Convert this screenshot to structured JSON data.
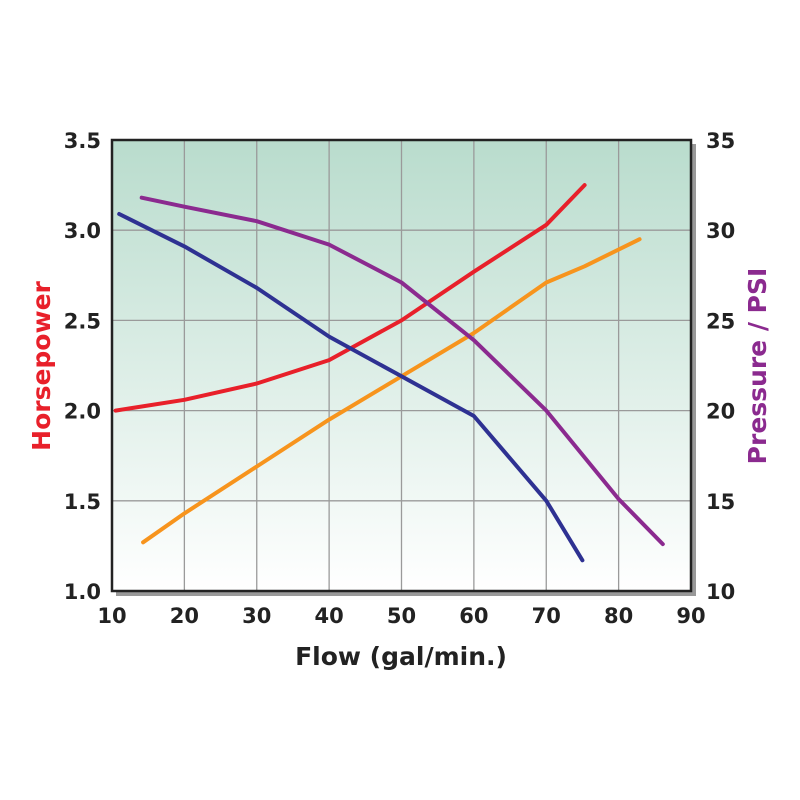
{
  "chart_data": {
    "type": "line",
    "xlabel": "Flow (gal/min.)",
    "ylabel": "Horsepower",
    "ylabel_right": "Pressure / PSI",
    "xlim": [
      10,
      90
    ],
    "ylim": [
      1.0,
      3.5
    ],
    "ylim_right": [
      10,
      35
    ],
    "x_ticks": [
      "10",
      "20",
      "30",
      "40",
      "50",
      "60",
      "70",
      "80",
      "90"
    ],
    "y_ticks": [
      "1.0",
      "1.5",
      "2.0",
      "2.5",
      "3.0",
      "3.5"
    ],
    "y_ticks_right": [
      "10",
      "15",
      "20",
      "25",
      "30",
      "35"
    ],
    "grid": true,
    "colors": {
      "ylabel": "#e8202a",
      "ylabel_right": "#8b2a8f",
      "bg_top": "#b9dccd",
      "bg_bottom": "#ffffff"
    },
    "series": [
      {
        "color": "#e8202a",
        "axis": "left",
        "x": [
          10.5,
          20,
          30,
          40,
          50,
          60,
          70,
          75.3
        ],
        "y": [
          2.0,
          2.06,
          2.15,
          2.28,
          2.5,
          2.77,
          3.03,
          3.25
        ]
      },
      {
        "color": "#f7941d",
        "axis": "left",
        "x": [
          14.3,
          20,
          30,
          40,
          50,
          60,
          70,
          75.3,
          82.9
        ],
        "y": [
          1.27,
          1.43,
          1.69,
          1.95,
          2.19,
          2.43,
          2.71,
          2.8,
          2.95
        ]
      },
      {
        "color": "#2e3192",
        "axis": "left",
        "x": [
          11,
          20,
          30,
          40,
          50,
          60,
          70,
          75
        ],
        "y": [
          3.09,
          2.91,
          2.68,
          2.41,
          2.19,
          1.97,
          1.5,
          1.17
        ]
      },
      {
        "color": "#8b2a8f",
        "axis": "right",
        "x": [
          14.1,
          20,
          30,
          40,
          50,
          60,
          70,
          80,
          86.1
        ],
        "y": [
          31.8,
          31.3,
          30.5,
          29.2,
          27.1,
          23.9,
          20.0,
          15.1,
          12.6
        ]
      }
    ]
  }
}
